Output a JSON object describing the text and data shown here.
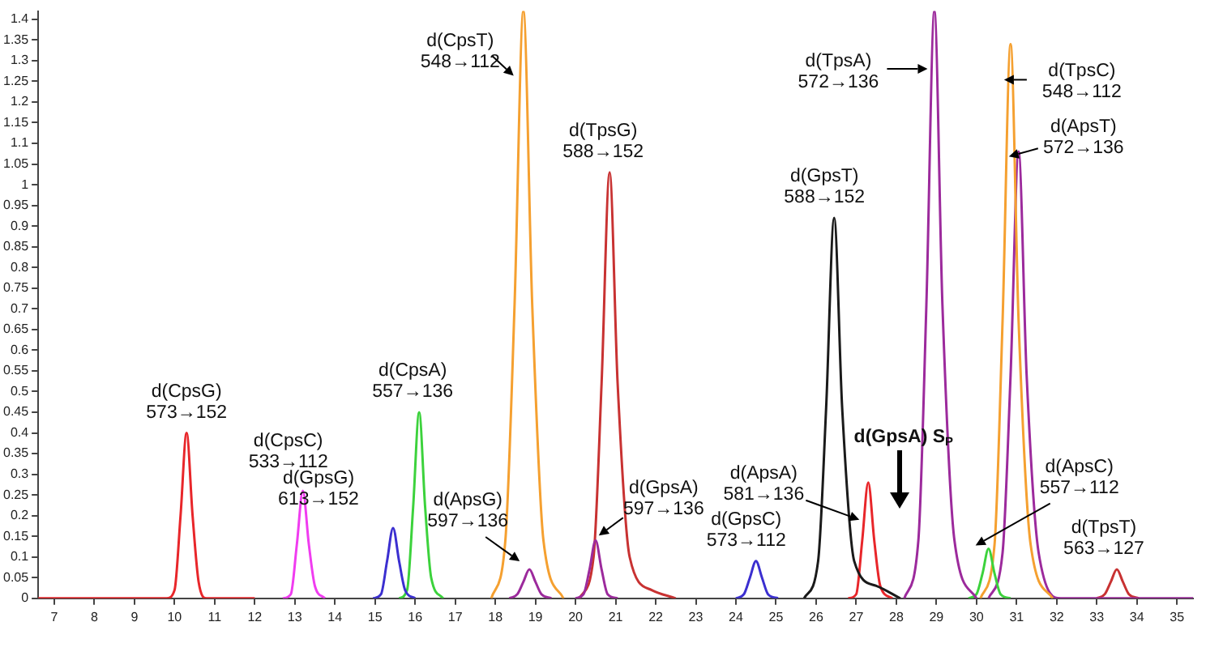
{
  "chart_data": {
    "type": "line",
    "xlim": [
      6.6,
      35.4
    ],
    "xticks": [
      7,
      8,
      9,
      10,
      11,
      12,
      13,
      14,
      15,
      16,
      17,
      18,
      19,
      20,
      21,
      22,
      23,
      24,
      25,
      26,
      27,
      28,
      29,
      30,
      31,
      32,
      33,
      34,
      35
    ],
    "ylim": [
      0,
      1.42
    ],
    "yticks": [
      0,
      0.05,
      0.1,
      0.15,
      0.2,
      0.25,
      0.3,
      0.35,
      0.4,
      0.45,
      0.5,
      0.55,
      0.6,
      0.65,
      0.7,
      0.75,
      0.8,
      0.85,
      0.9,
      0.95,
      1,
      1.05,
      1.1,
      1.15,
      1.2,
      1.25,
      1.3,
      1.35,
      1.4
    ],
    "grid": false,
    "legend": false,
    "marker": "none",
    "line_style": "solid",
    "series": [
      {
        "color": "#e8262a",
        "x": [
          6.6,
          9.8,
          10.0,
          10.15,
          10.3,
          10.45,
          10.6,
          10.8,
          12.0
        ],
        "values": [
          0,
          0,
          0.02,
          0.2,
          0.4,
          0.2,
          0.04,
          0,
          0
        ]
      },
      {
        "color": "#f03cf0",
        "x": [
          12.7,
          12.9,
          13.05,
          13.2,
          13.35,
          13.5,
          13.75
        ],
        "values": [
          0,
          0.01,
          0.13,
          0.26,
          0.13,
          0.03,
          0
        ]
      },
      {
        "color": "#3b2fd0",
        "x": [
          14.95,
          15.15,
          15.3,
          15.45,
          15.6,
          15.75,
          16.0
        ],
        "values": [
          0,
          0.01,
          0.09,
          0.17,
          0.09,
          0.02,
          0
        ]
      },
      {
        "color": "#3cd23c",
        "x": [
          15.6,
          15.8,
          15.95,
          16.1,
          16.25,
          16.4,
          16.7
        ],
        "values": [
          0,
          0.02,
          0.22,
          0.45,
          0.22,
          0.05,
          0
        ]
      },
      {
        "color": "#f5a030",
        "x": [
          17.9,
          18.25,
          18.48,
          18.7,
          18.92,
          19.2,
          19.7
        ],
        "values": [
          0,
          0.14,
          0.71,
          1.42,
          0.71,
          0.14,
          0
        ]
      },
      {
        "color": "#9c2a9c",
        "x": [
          18.35,
          18.55,
          18.7,
          18.85,
          19.0,
          19.15,
          19.4
        ],
        "values": [
          0,
          0.01,
          0.04,
          0.07,
          0.04,
          0.01,
          0
        ]
      },
      {
        "color": "#9c2a9c",
        "x": [
          20.0,
          20.2,
          20.35,
          20.5,
          20.65,
          20.8,
          21.05
        ],
        "values": [
          0,
          0.01,
          0.07,
          0.14,
          0.07,
          0.01,
          0
        ]
      },
      {
        "color": "#c83232",
        "x": [
          20.1,
          20.45,
          20.65,
          20.85,
          21.05,
          21.35,
          21.9,
          22.5
        ],
        "values": [
          0,
          0.1,
          0.52,
          1.03,
          0.52,
          0.1,
          0.02,
          0
        ]
      },
      {
        "color": "#3b2fd0",
        "x": [
          24.0,
          24.2,
          24.35,
          24.5,
          24.65,
          24.8,
          25.05
        ],
        "values": [
          0,
          0.01,
          0.05,
          0.09,
          0.05,
          0.01,
          0
        ]
      },
      {
        "color": "#1a1a1a",
        "x": [
          25.7,
          26.05,
          26.25,
          26.45,
          26.65,
          26.95,
          27.5,
          28.1
        ],
        "values": [
          0,
          0.09,
          0.46,
          0.92,
          0.46,
          0.09,
          0.03,
          0
        ]
      },
      {
        "color": "#e8262a",
        "x": [
          26.8,
          27.0,
          27.15,
          27.3,
          27.45,
          27.6,
          27.9
        ],
        "values": [
          0,
          0.01,
          0.14,
          0.28,
          0.14,
          0.03,
          0
        ]
      },
      {
        "color": "#9c2a9c",
        "x": [
          28.2,
          28.55,
          28.75,
          28.95,
          29.15,
          29.45,
          30.0
        ],
        "values": [
          0,
          0.14,
          0.71,
          1.42,
          0.71,
          0.14,
          0
        ]
      },
      {
        "color": "#3cd23c",
        "x": [
          29.8,
          30.0,
          30.15,
          30.3,
          30.45,
          30.6,
          30.85
        ],
        "values": [
          0,
          0.01,
          0.06,
          0.12,
          0.06,
          0.01,
          0
        ]
      },
      {
        "color": "#f5a030",
        "x": [
          30.1,
          30.45,
          30.65,
          30.85,
          31.05,
          31.35,
          31.9
        ],
        "values": [
          0,
          0.13,
          0.67,
          1.34,
          0.67,
          0.13,
          0
        ]
      },
      {
        "color": "#9c2a9c",
        "x": [
          30.3,
          30.65,
          30.85,
          31.05,
          31.25,
          31.55,
          32.1,
          35.4
        ],
        "values": [
          0,
          0.11,
          0.54,
          1.08,
          0.54,
          0.11,
          0,
          0
        ]
      },
      {
        "color": "#c83232",
        "x": [
          33.0,
          33.2,
          33.35,
          33.5,
          33.65,
          33.8,
          34.05
        ],
        "values": [
          0,
          0.01,
          0.04,
          0.07,
          0.04,
          0.01,
          0
        ]
      }
    ],
    "annotations": [
      {
        "text": "d(CpsG)\n573→152",
        "x": 10.3,
        "y": 0.4
      },
      {
        "text": "d(CpsC)\n533→112",
        "x": 13.2,
        "y": 0.26
      },
      {
        "text": "d(GpsG)\n613→152",
        "x": 15.45,
        "y": 0.17
      },
      {
        "text": "d(CpsA)\n557→136",
        "x": 16.1,
        "y": 0.45
      },
      {
        "text": "d(CpsT)\n548→112",
        "x": 18.7,
        "y": 1.42
      },
      {
        "text": "d(ApsG)\n597→136",
        "x": 18.85,
        "y": 0.07
      },
      {
        "text": "d(GpsA)\n597→136",
        "x": 20.5,
        "y": 0.14
      },
      {
        "text": "d(TpsG)\n588→152",
        "x": 20.85,
        "y": 1.03
      },
      {
        "text": "d(GpsC)\n573→112",
        "x": 24.5,
        "y": 0.09
      },
      {
        "text": "d(GpsT)\n588→152",
        "x": 26.45,
        "y": 0.92
      },
      {
        "text": "d(ApsA)\n581→136",
        "x": 27.2,
        "y": 0.19
      },
      "d(GpsA) S$_{P}$",
      {
        "text": "d(TpsA)\n572→136",
        "x": 28.9,
        "y": 1.28
      },
      {
        "text": "d(ApsC)\n557→112",
        "x": 30.3,
        "y": 0.12
      },
      {
        "text": "d(TpsC)\n548→112",
        "x": 30.85,
        "y": 1.34
      },
      {
        "text": "d(ApsT)\n572→136",
        "x": 31.05,
        "y": 1.08
      },
      {
        "text": "d(TpsT)\n563→127",
        "x": 33.5,
        "y": 0.07
      }
    ]
  }
}
